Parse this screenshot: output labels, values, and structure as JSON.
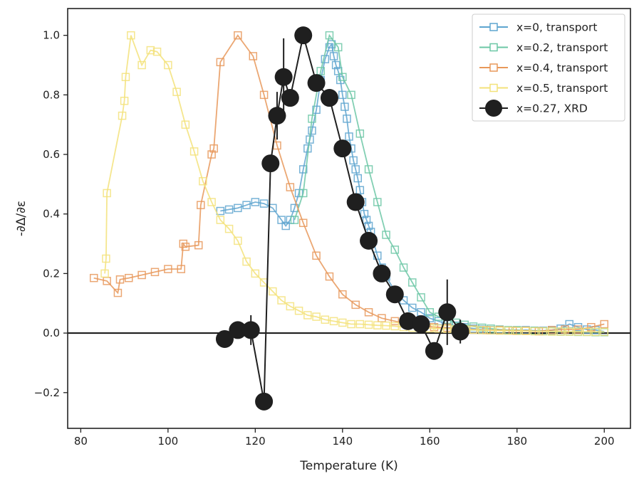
{
  "chart_data": {
    "type": "line",
    "title": "",
    "xlabel": "Temperature (K)",
    "ylabel": "-∂Δ/∂ε",
    "xlim": [
      77,
      206
    ],
    "ylim": [
      -0.32,
      1.09
    ],
    "xticks": [
      80,
      100,
      120,
      140,
      160,
      180,
      200
    ],
    "xtick_labels": [
      "80",
      "100",
      "120",
      "140",
      "160",
      "180",
      "200"
    ],
    "yticks": [
      -0.2,
      0.0,
      0.2,
      0.4,
      0.6,
      0.8,
      1.0
    ],
    "ytick_labels": [
      "−0.2",
      "0.0",
      "0.2",
      "0.4",
      "0.6",
      "0.8",
      "1.0"
    ],
    "hline": 0,
    "legend_position": "top-right",
    "series": [
      {
        "name": "x=0, transport",
        "color": "#5ea5cf",
        "marker": "square",
        "x": [
          112,
          114,
          116,
          118,
          120,
          122,
          124,
          126,
          127,
          128,
          129,
          130,
          131,
          132,
          132.5,
          133,
          134,
          135,
          136,
          137,
          137.5,
          138,
          138.5,
          139,
          139.5,
          140,
          140.5,
          141,
          141.5,
          142,
          142.5,
          143,
          143.5,
          144,
          144.5,
          145,
          145.5,
          146,
          146.5,
          147,
          148,
          149,
          150,
          152,
          154,
          156,
          158,
          160,
          162,
          164,
          166,
          168,
          170,
          172,
          174,
          176,
          178,
          180,
          182,
          184,
          186,
          188,
          190,
          192,
          194,
          196,
          198,
          200
        ],
        "y": [
          0.41,
          0.415,
          0.42,
          0.43,
          0.44,
          0.435,
          0.42,
          0.38,
          0.36,
          0.38,
          0.42,
          0.47,
          0.55,
          0.62,
          0.65,
          0.68,
          0.75,
          0.85,
          0.92,
          0.96,
          0.97,
          0.93,
          0.9,
          0.88,
          0.85,
          0.8,
          0.76,
          0.72,
          0.66,
          0.62,
          0.58,
          0.55,
          0.52,
          0.48,
          0.44,
          0.4,
          0.38,
          0.36,
          0.34,
          0.31,
          0.26,
          0.22,
          0.19,
          0.14,
          0.11,
          0.085,
          0.07,
          0.05,
          0.04,
          0.03,
          0.025,
          0.02,
          0.015,
          0.012,
          0.01,
          0.01,
          0.008,
          0.008,
          0.01,
          0.008,
          0.008,
          0.01,
          0.015,
          0.03,
          0.02,
          0.012,
          0.01,
          0.005
        ]
      },
      {
        "name": "x=0.2, transport",
        "color": "#6cc7a6",
        "marker": "square",
        "x": [
          129,
          131,
          133,
          135,
          137,
          139,
          140,
          142,
          144,
          146,
          148,
          150,
          152,
          154,
          156,
          158,
          160,
          162,
          164,
          166,
          168,
          170,
          172,
          174,
          176,
          178,
          180,
          182,
          184,
          186,
          188,
          190,
          192,
          194,
          196,
          198,
          200
        ],
        "y": [
          0.38,
          0.47,
          0.72,
          0.88,
          1.0,
          0.96,
          0.86,
          0.8,
          0.67,
          0.55,
          0.44,
          0.33,
          0.28,
          0.22,
          0.17,
          0.12,
          0.07,
          0.055,
          0.045,
          0.035,
          0.028,
          0.022,
          0.018,
          0.015,
          0.012,
          0.01,
          0.01,
          0.008,
          0.008,
          0.006,
          0.006,
          0.005,
          0.005,
          0.004,
          0.004,
          0.003,
          0.003
        ]
      },
      {
        "name": "x=0.4, transport",
        "color": "#e8985a",
        "marker": "square",
        "x": [
          83,
          86,
          88.5,
          89,
          91,
          94,
          97,
          100,
          103,
          103.5,
          104,
          107,
          107.5,
          110,
          110.5,
          112,
          116,
          119.5,
          122,
          125,
          128,
          131,
          134,
          137,
          140,
          143,
          146,
          149,
          152,
          155,
          158,
          161,
          164,
          167,
          170,
          173,
          176,
          179,
          182,
          185,
          188,
          191,
          194,
          197,
          200
        ],
        "y": [
          0.185,
          0.175,
          0.135,
          0.18,
          0.185,
          0.195,
          0.205,
          0.215,
          0.215,
          0.3,
          0.29,
          0.295,
          0.43,
          0.6,
          0.62,
          0.91,
          1.0,
          0.93,
          0.8,
          0.63,
          0.49,
          0.37,
          0.26,
          0.19,
          0.13,
          0.095,
          0.07,
          0.05,
          0.04,
          0.03,
          0.025,
          0.02,
          0.018,
          0.015,
          0.012,
          0.01,
          0.01,
          0.008,
          0.008,
          0.006,
          0.01,
          0.012,
          0.012,
          0.02,
          0.03
        ]
      },
      {
        "name": "x=0.5, transport",
        "color": "#f3e27a",
        "marker": "square",
        "x": [
          85.5,
          85.8,
          86,
          89.5,
          90,
          90.3,
          91.5,
          94,
          96,
          97.5,
          100,
          102,
          104,
          106,
          108,
          110,
          112,
          114,
          116,
          118,
          120,
          122,
          124,
          126,
          128,
          130,
          132,
          134,
          136,
          138,
          140,
          142,
          144,
          146,
          148,
          150,
          152,
          154,
          156,
          158,
          160,
          162,
          164,
          166,
          168,
          170,
          172,
          174,
          176,
          178,
          180,
          182,
          184,
          186,
          188,
          190,
          192,
          194,
          196,
          198,
          200
        ],
        "y": [
          0.2,
          0.25,
          0.47,
          0.73,
          0.78,
          0.86,
          1.0,
          0.9,
          0.95,
          0.945,
          0.9,
          0.81,
          0.7,
          0.61,
          0.51,
          0.44,
          0.38,
          0.35,
          0.31,
          0.24,
          0.2,
          0.17,
          0.14,
          0.11,
          0.09,
          0.075,
          0.06,
          0.055,
          0.045,
          0.04,
          0.035,
          0.03,
          0.03,
          0.028,
          0.026,
          0.025,
          0.023,
          0.02,
          0.018,
          0.017,
          0.016,
          0.015,
          0.014,
          0.013,
          0.012,
          0.011,
          0.01,
          0.009,
          0.008,
          0.008,
          0.007,
          0.007,
          0.006,
          0.006,
          0.005,
          0.005,
          0.005,
          0.005,
          0.004,
          0.004,
          0.004
        ]
      },
      {
        "name": "x=0.27, XRD",
        "color": "#1f1f1f",
        "marker": "circle",
        "x": [
          113,
          116,
          119,
          122,
          123.5,
          125,
          126.5,
          128,
          131,
          134,
          137,
          140,
          143,
          146,
          149,
          152,
          155,
          158,
          161,
          164,
          167
        ],
        "y": [
          -0.02,
          0.01,
          0.01,
          -0.23,
          0.57,
          0.73,
          0.86,
          0.79,
          1.0,
          0.84,
          0.79,
          0.62,
          0.44,
          0.31,
          0.2,
          0.13,
          0.04,
          0.03,
          -0.06,
          0.07,
          0.005
        ],
        "yerr": [
          0,
          0,
          0.05,
          0,
          0,
          0.08,
          0.13,
          0,
          0,
          0,
          0,
          0,
          0,
          0,
          0,
          0,
          0,
          0,
          0,
          0.11,
          0.04
        ]
      }
    ]
  }
}
